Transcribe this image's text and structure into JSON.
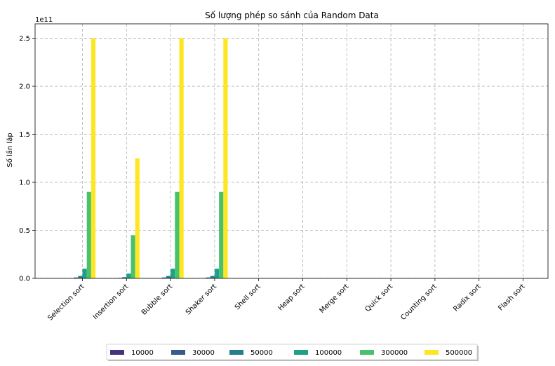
{
  "chart_data": {
    "type": "bar",
    "title": "Số lượng phép so sánh của Random Data",
    "xlabel": "",
    "ylabel": "Số lần lặp",
    "y_scale_note": "1e11",
    "ylim": [
      0,
      2.65
    ],
    "yticks": [
      "0.0",
      "0.5",
      "1.0",
      "1.5",
      "2.0",
      "2.5"
    ],
    "grid": true,
    "legend_position": "bottom-center",
    "categories": [
      "Selection sort",
      "Insertion sort",
      "Bubble sort",
      "Shaker sort",
      "Shell sort",
      "Heap sort",
      "Merge sort",
      "Quick sort",
      "Counting sort",
      "Radix sort",
      "Flash sort"
    ],
    "series": [
      {
        "name": "10000",
        "color": "#46327e",
        "values": [
          0.001,
          0.0005,
          0.001,
          0.001,
          0,
          0,
          0,
          0,
          0,
          0,
          0
        ]
      },
      {
        "name": "30000",
        "color": "#365c8d",
        "values": [
          0.009,
          0.0045,
          0.009,
          0.009,
          0,
          0,
          0,
          0,
          0,
          0,
          0
        ]
      },
      {
        "name": "50000",
        "color": "#277f8e",
        "values": [
          0.025,
          0.0125,
          0.025,
          0.025,
          0,
          0,
          0,
          0,
          0,
          0,
          0
        ]
      },
      {
        "name": "100000",
        "color": "#1fa187",
        "values": [
          0.1,
          0.05,
          0.1,
          0.1,
          0,
          0,
          0,
          0,
          0,
          0,
          0
        ]
      },
      {
        "name": "300000",
        "color": "#4ac16d",
        "values": [
          0.9,
          0.45,
          0.9,
          0.9,
          0,
          0,
          0,
          0,
          0,
          0,
          0
        ]
      },
      {
        "name": "500000",
        "color": "#fde725",
        "values": [
          2.5,
          1.25,
          2.5,
          2.5,
          0,
          0,
          0,
          0,
          0,
          0,
          0
        ]
      }
    ]
  }
}
